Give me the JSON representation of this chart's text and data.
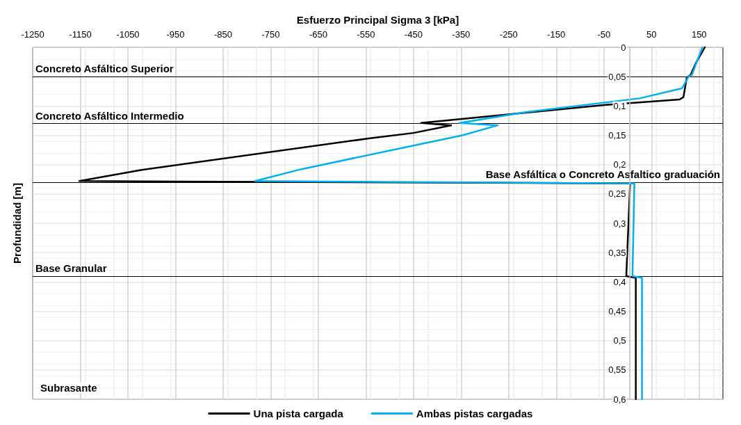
{
  "chart_data": {
    "type": "line",
    "xlabel": "Esfuerzo Principal Sigma 3 [kPa]",
    "ylabel": "Profundidad [m]",
    "xlim": [
      -1250,
      200
    ],
    "xticks": [
      -1250,
      -1150,
      -1050,
      -950,
      -850,
      -750,
      -650,
      -550,
      -450,
      -350,
      -250,
      -150,
      -50,
      50,
      150
    ],
    "ylim": [
      0.6,
      0
    ],
    "yticks": [
      0,
      {
        "value": 0.05,
        "label": "0,05"
      },
      {
        "value": 0.1,
        "label": "0,1"
      },
      {
        "value": 0.15,
        "label": "0,15"
      },
      {
        "value": 0.2,
        "label": "0,2"
      },
      {
        "value": 0.25,
        "label": "0,25"
      },
      {
        "value": 0.3,
        "label": "0,3"
      },
      {
        "value": 0.35,
        "label": "0,35"
      },
      {
        "value": 0.4,
        "label": "0,4"
      },
      {
        "value": 0.45,
        "label": "0,45"
      },
      {
        "value": 0.5,
        "label": "0,5"
      },
      {
        "value": 0.55,
        "label": "0,55"
      },
      {
        "value": 0.6,
        "label": "0,6"
      }
    ],
    "series": [
      {
        "name": "Una pista cargada",
        "color": "#000000",
        "x": [
          162,
          143,
          132,
          124,
          117,
          109,
          -46,
          -434,
          -371,
          -450,
          -541,
          -1021,
          -1152,
          5,
          -3,
          17,
          17
        ],
        "values": [
          0,
          0.027,
          0.047,
          0.052,
          0.085,
          0.089,
          0.098,
          0.129,
          0.133,
          0.146,
          0.155,
          0.209,
          0.228,
          0.232,
          0.39,
          0.393,
          0.6
        ]
      },
      {
        "name": "Ambas pistas cargadas",
        "color": "#00b0f0",
        "x": [
          157,
          143,
          135,
          128,
          114,
          25,
          -210,
          -353,
          -273,
          -347,
          -687,
          -783,
          14,
          10,
          30,
          30
        ],
        "values": [
          0,
          0.029,
          0.047,
          0.05,
          0.07,
          0.087,
          0.11,
          0.129,
          0.133,
          0.15,
          0.208,
          0.228,
          0.232,
          0.39,
          0.393,
          0.6
        ]
      }
    ],
    "ref_lines": [
      {
        "axis": "y",
        "value": 0.05,
        "label": "Concreto Asfáltico Superior",
        "color": "#000000"
      },
      {
        "axis": "y",
        "value": 0.13,
        "label": "Concreto Asfáltico Intermedio",
        "color": "#000000"
      },
      {
        "axis": "y",
        "value": 0.23,
        "label": "Base Asfáltica o Concreto Asfaltico graduación",
        "color": "#000000"
      },
      {
        "axis": "y",
        "value": 0.39,
        "label": "Base Granular",
        "color": "#000000"
      }
    ],
    "annotations": [
      "Subrasante"
    ],
    "grid": true,
    "legend": "bottom",
    "marker": "none",
    "line_style": "solid"
  }
}
